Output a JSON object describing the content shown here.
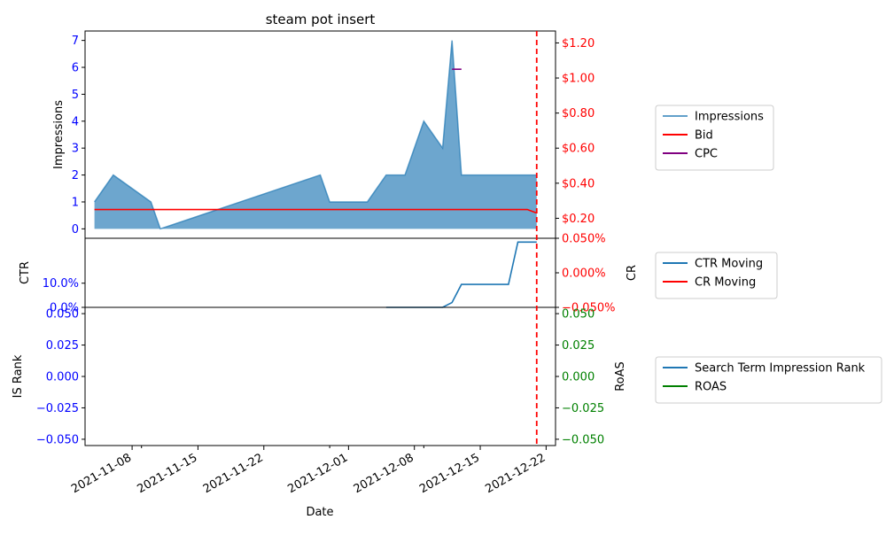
{
  "chart_data": [
    {
      "type": "area",
      "title": "steam pot insert",
      "xlabel": "Date",
      "ylabel_left": "Impressions",
      "y_left_lim": [
        -0.35,
        7.35
      ],
      "y_left_ticks": [
        0,
        1,
        2,
        3,
        4,
        5,
        6,
        7
      ],
      "y_right_lim": [
        0.086,
        1.268
      ],
      "y_right_ticks": [
        0.2,
        0.4,
        0.6,
        0.8,
        1.0,
        1.2
      ],
      "y_right_tick_labels": [
        "$0.20",
        "$0.40",
        "$0.60",
        "$0.80",
        "$1.00",
        "$1.20"
      ],
      "colors": {
        "impressions": "#1f77b4",
        "bid": "#ff0000",
        "cpc": "#800080",
        "left_ticks": "#0000ff",
        "right_ticks": "#ff0000"
      },
      "series": [
        {
          "name": "Impressions",
          "x": [
            "2021-11-04",
            "2021-11-06",
            "2021-11-10",
            "2021-11-11",
            "2021-11-28",
            "2021-11-29",
            "2021-12-03",
            "2021-12-05",
            "2021-12-07",
            "2021-12-09",
            "2021-12-11",
            "2021-12-12",
            "2021-12-13",
            "2021-12-21"
          ],
          "values": [
            1,
            2,
            1,
            0,
            2,
            1,
            1,
            2,
            2,
            4,
            3,
            7,
            2,
            2
          ]
        },
        {
          "name": "Bid",
          "x": [
            "2021-11-04",
            "2021-12-20",
            "2021-12-21"
          ],
          "values": [
            0.25,
            0.25,
            0.23
          ]
        },
        {
          "name": "CPC",
          "x": [
            "2021-12-12",
            "2021-12-13"
          ],
          "values": [
            1.05,
            1.05
          ]
        }
      ],
      "legend": [
        "Impressions",
        "Bid",
        "CPC"
      ],
      "legend_position": "outside-right"
    },
    {
      "type": "line",
      "ylabel_left": "CTR",
      "ylabel_right": "CR",
      "y_left_lim": [
        0,
        0.286
      ],
      "y_left_ticks": [
        0.0,
        0.1
      ],
      "y_left_tick_labels": [
        "0.0%",
        "10.0%"
      ],
      "y_right_lim": [
        -0.05,
        0.05
      ],
      "y_right_ticks": [
        -0.05,
        0.0,
        0.05
      ],
      "y_right_tick_labels": [
        "−0.050%",
        "0.000%",
        "0.050%"
      ],
      "colors": {
        "ctr": "#1f77b4",
        "cr": "#ff0000",
        "left_ticks": "#0000ff",
        "right_ticks": "#ff0000"
      },
      "series": [
        {
          "name": "CTR Moving",
          "x": [
            "2021-12-05",
            "2021-12-11",
            "2021-12-12",
            "2021-12-13",
            "2021-12-18",
            "2021-12-19",
            "2021-12-21"
          ],
          "values": [
            0.0,
            0.0,
            0.02,
            0.095,
            0.095,
            0.27,
            0.27
          ]
        },
        {
          "name": "CR Moving",
          "x": [],
          "values": []
        }
      ],
      "legend": [
        "CTR Moving",
        "CR Moving"
      ],
      "legend_position": "outside-right"
    },
    {
      "type": "line",
      "ylabel_left": "IS Rank",
      "ylabel_right": "RoAS",
      "y_left_lim": [
        -0.055,
        0.055
      ],
      "y_left_ticks": [
        -0.05,
        -0.025,
        0.0,
        0.025,
        0.05
      ],
      "y_left_tick_labels": [
        "−0.050",
        "−0.025",
        "0.000",
        "0.025",
        "0.050"
      ],
      "y_right_lim": [
        -0.055,
        0.055
      ],
      "y_right_ticks": [
        -0.05,
        -0.025,
        0.0,
        0.025,
        0.05
      ],
      "y_right_tick_labels": [
        "−0.050",
        "−0.025",
        "0.000",
        "0.025",
        "0.050"
      ],
      "colors": {
        "rank": "#1f77b4",
        "roas": "#008000",
        "left_ticks": "#0000ff",
        "right_ticks": "#008000"
      },
      "series": [
        {
          "name": "Search Term Impression Rank",
          "x": [],
          "values": []
        },
        {
          "name": "ROAS",
          "x": [],
          "values": []
        }
      ],
      "legend": [
        "Search Term Impression Rank",
        "ROAS"
      ],
      "legend_position": "outside-right"
    }
  ],
  "x_axis": {
    "xlim": [
      "2021-11-03",
      "2021-12-23"
    ],
    "ticks": [
      "2021-11-08",
      "2021-11-15",
      "2021-11-22",
      "2021-12-01",
      "2021-12-08",
      "2021-12-15",
      "2021-12-22"
    ],
    "minor_ticks": [
      "2021-11-09",
      "2021-11-29",
      "2021-12-09"
    ],
    "vline_date": "2021-12-21",
    "vline_color": "#ff0000"
  }
}
